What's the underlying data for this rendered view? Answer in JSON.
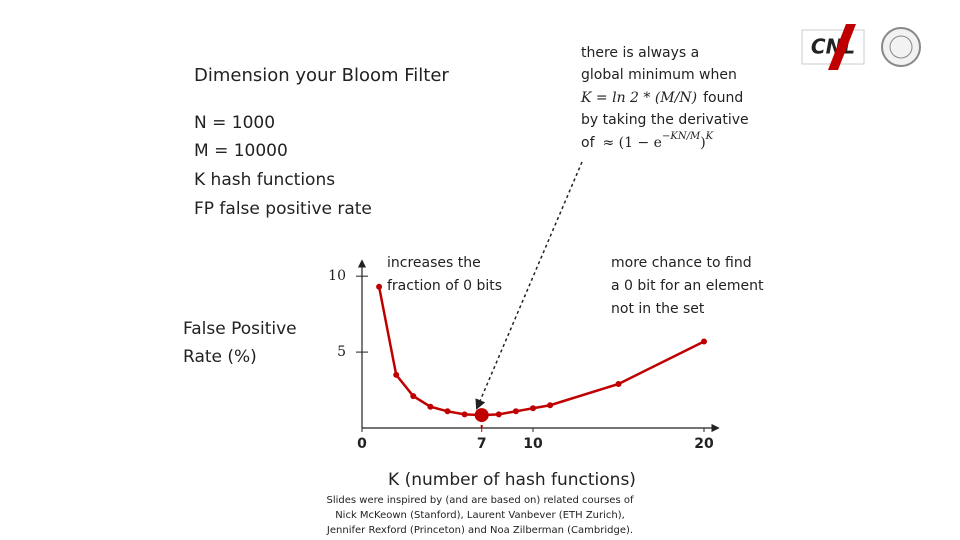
{
  "slide": {
    "title": "Dimension your Bloom Filter",
    "params": [
      "N = 1000",
      "M = 10000",
      "K hash functions",
      "FP false positive rate"
    ],
    "note": {
      "lines": [
        "there is always a",
        "global minimum when"
      ],
      "formula1": {
        "lhs": "K = ln 2 * (M/N)",
        "rest": "found"
      },
      "line4": "by taking the derivative",
      "formula2": {
        "of": "of",
        "base": "≈ (1 − e",
        "exp1": "−KN/M",
        "close": ")",
        "exp2": "K"
      }
    },
    "logo_text": "CNL",
    "footnote": [
      "Slides were inspired by (and are based on) related courses of",
      "Nick McKeown (Stanford), Laurent Vanbever (ETH Zurich),",
      "Jennifer Rexford (Princeton) and Noa Zilberman (Cambridge)."
    ]
  },
  "chart_data": {
    "type": "line",
    "ylabel": [
      "False Positive",
      "Rate (%)"
    ],
    "xlabel": "K (number of hash functions)",
    "x": [
      1,
      2,
      3,
      4,
      5,
      6,
      7,
      8,
      9,
      10,
      11,
      15,
      20
    ],
    "series": [
      {
        "color": "#c00000",
        "values": [
          9.3,
          3.5,
          2.1,
          1.4,
          1.1,
          0.9,
          0.85,
          0.9,
          1.1,
          1.3,
          1.5,
          2.9,
          5.7
        ]
      }
    ],
    "highlight_x": 7,
    "xlim": [
      0,
      20
    ],
    "ylim": [
      0,
      11
    ],
    "xticks": [
      0,
      7,
      10,
      20
    ],
    "yticks": [
      5,
      10
    ],
    "annotations": [
      [
        "increases the",
        "fraction of 0 bits"
      ],
      [
        "more chance to find",
        "a 0 bit for an element",
        "not in the set"
      ]
    ]
  }
}
